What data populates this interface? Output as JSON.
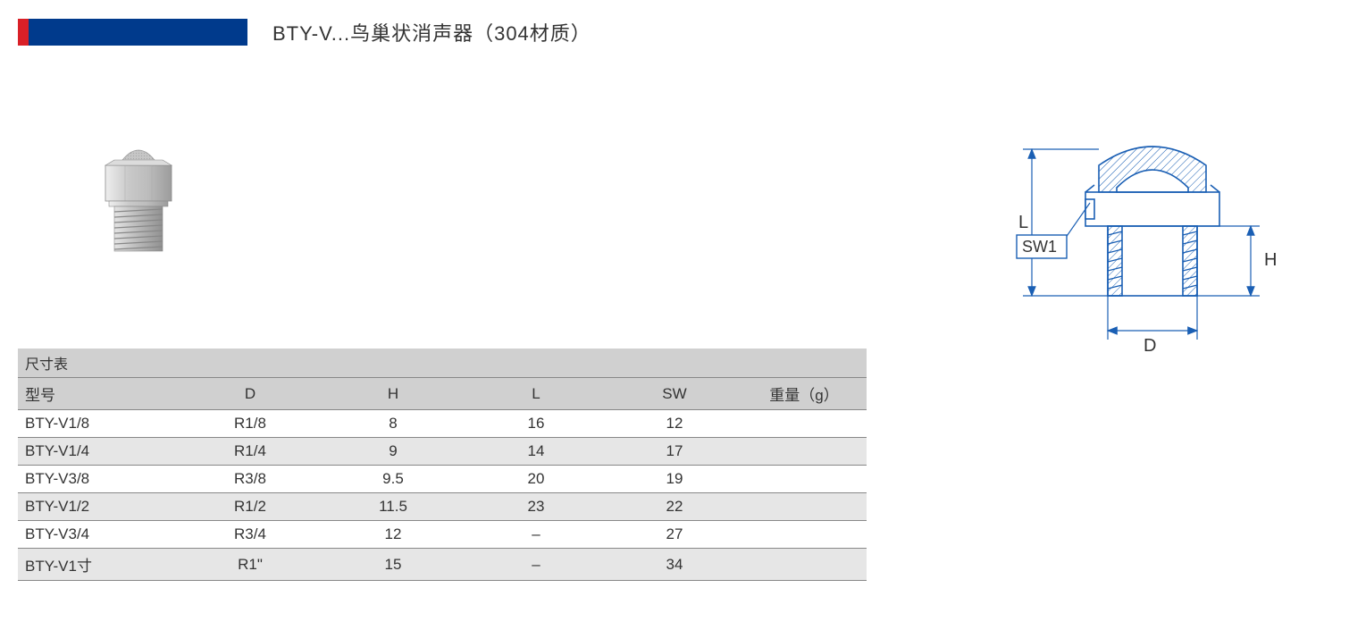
{
  "header": {
    "red_color": "#d92027",
    "blue_color": "#003a8c",
    "title": "BTY-V...鸟巢状消声器（304材质）"
  },
  "product_image": {
    "metal_light": "#d8d8d8",
    "metal_mid": "#b8b8b8",
    "metal_dark": "#9a9a9a",
    "mesh_color": "#bababa"
  },
  "table": {
    "title": "尺寸表",
    "header_bg": "#d0d0d0",
    "row_alt_bg": "#e6e6e6",
    "border_color": "#888888",
    "columns": [
      "型号",
      "D",
      "H",
      "L",
      "SW",
      "重量（g）"
    ],
    "rows": [
      [
        "BTY-V1/8",
        "R1/8",
        "8",
        "16",
        "12",
        ""
      ],
      [
        "BTY-V1/4",
        "R1/4",
        "9",
        "14",
        "17",
        ""
      ],
      [
        "BTY-V3/8",
        "R3/8",
        "9.5",
        "20",
        "19",
        ""
      ],
      [
        "BTY-V1/2",
        "R1/2",
        "11.5",
        "23",
        "22",
        ""
      ],
      [
        "BTY-V3/4",
        "R3/4",
        "12",
        "–",
        "27",
        ""
      ],
      [
        "BTY-V1寸",
        "R1\"",
        "15",
        "–",
        "34",
        ""
      ]
    ]
  },
  "diagram": {
    "line_color": "#1a5fb4",
    "text_color": "#333333",
    "labels": {
      "L": "L",
      "H": "H",
      "D": "D",
      "SW1": "SW1"
    },
    "font_size": 18
  }
}
